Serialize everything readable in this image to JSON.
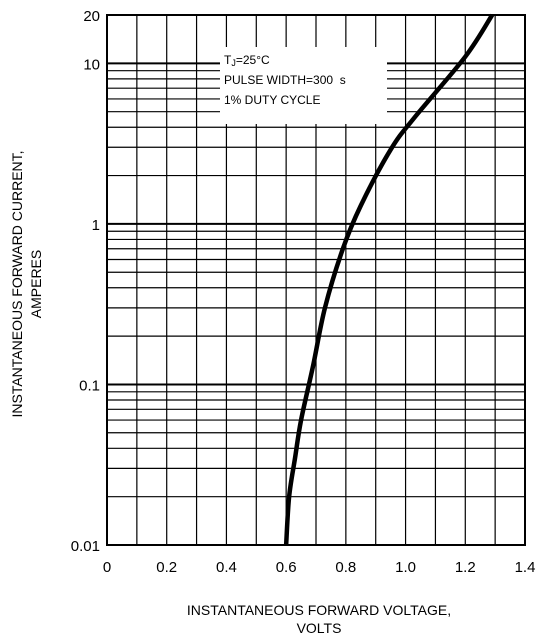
{
  "chart_data": {
    "type": "line",
    "xlabel_lines": [
      "INSTANTANEOUS FORWARD VOLTAGE,",
      "VOLTS"
    ],
    "ylabel_lines": [
      "INSTANTANEOUS FORWARD CURRENT,",
      "AMPERES"
    ],
    "x_scale": "linear",
    "y_scale": "log",
    "xlim": [
      0,
      1.4
    ],
    "ylim": [
      0.01,
      20
    ],
    "x_ticks": [
      0,
      0.2,
      0.4,
      0.6,
      0.8,
      1.0,
      1.2,
      1.4
    ],
    "x_tick_labels": [
      "0",
      "0.2",
      "0.4",
      "0.6",
      "0.8",
      "1.0",
      "1.2",
      "1.4"
    ],
    "y_ticks": [
      0.01,
      0.1,
      1,
      10,
      20
    ],
    "y_tick_labels": [
      "0.01",
      "0.1",
      "1",
      "10",
      "20"
    ],
    "grid": true,
    "annotation": {
      "tj_symbol": "T",
      "tj_subscript": "J",
      "tj_value": "=25°C",
      "line2": "PULSE WIDTH=300  s",
      "line3": "1% DUTY CYCLE"
    },
    "series": [
      {
        "x": [
          0.6,
          0.61,
          0.63,
          0.65,
          0.69,
          0.73,
          0.79,
          0.85,
          0.95,
          1.03,
          1.2,
          1.29
        ],
        "y": [
          0.01,
          0.02,
          0.035,
          0.06,
          0.13,
          0.3,
          0.7,
          1.3,
          2.9,
          4.6,
          11,
          20
        ]
      }
    ]
  }
}
